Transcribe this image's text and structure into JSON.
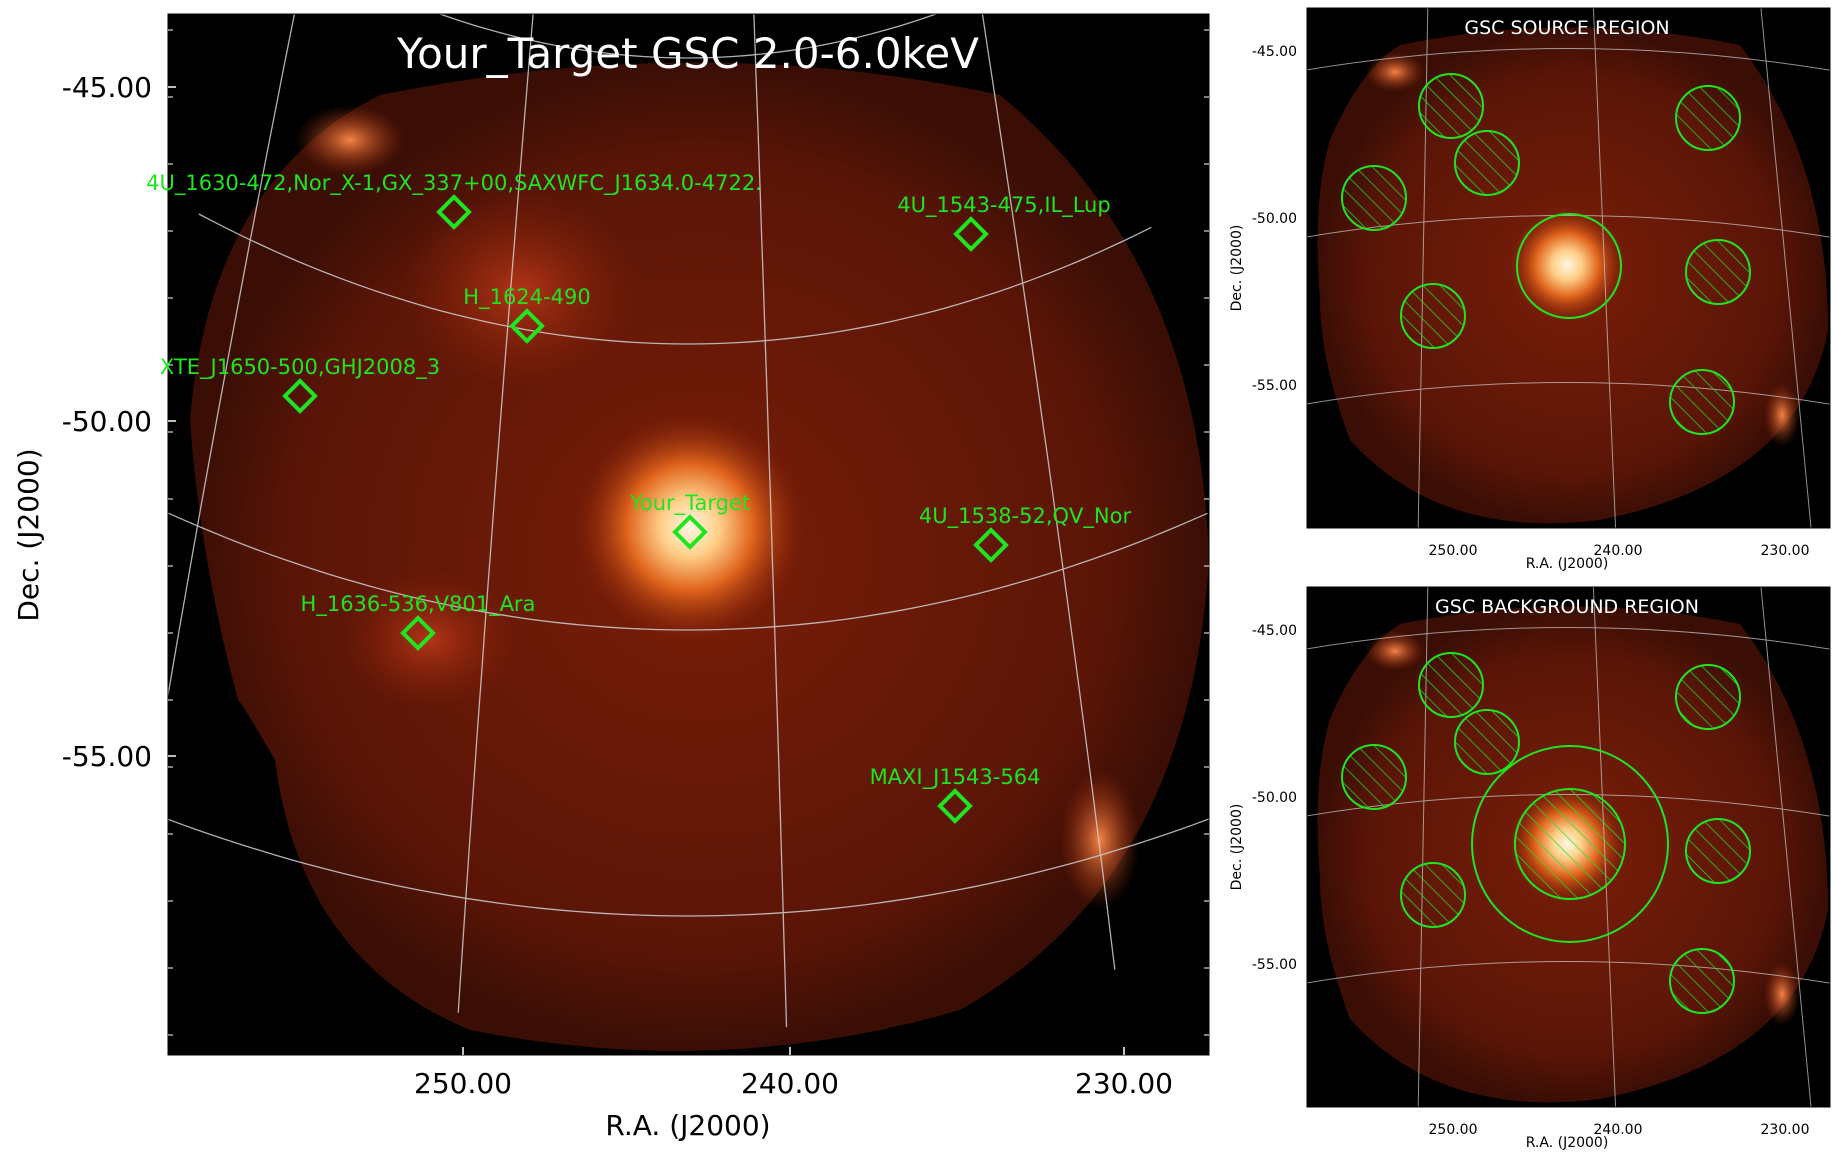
{
  "colors": {
    "background": "#000000",
    "heat_dim": "#3a0f06",
    "heat_mid": "#8a2408",
    "heat_bright": "#ff9a3c",
    "heat_peak": "#fff6e4",
    "grid": "#cfcfcf",
    "marker": "#1ee61e",
    "title_text": "#ffffff",
    "axis_text": "#000000"
  },
  "chart_data": [
    {
      "type": "heatmap",
      "title": "Your_Target GSC 2.0-6.0keV",
      "xlabel": "R.A. (J2000)",
      "ylabel": "Dec. (J2000)",
      "x_ticks": [
        "250.00",
        "240.00",
        "230.00"
      ],
      "y_ticks": [
        "-45.00",
        "-50.00",
        "-55.00"
      ],
      "x_tick_values": [
        250,
        240,
        230
      ],
      "y_tick_values": [
        -45,
        -50,
        -55
      ],
      "xlim": [
        259,
        228
      ],
      "ylim": [
        -60.5,
        -44
      ],
      "x_direction": "decreasing",
      "grid": true,
      "sources": [
        {
          "label": "4U_1630-472,Nor_X-1,GX_337+00,SAXWFC_J1634.0-4722.",
          "ra": 248.5,
          "dec": -47.4
        },
        {
          "label": "4U_1543-475,IL_Lup",
          "ra": 236.8,
          "dec": -47.7
        },
        {
          "label": "H_1624-490",
          "ra": 247.0,
          "dec": -49.1
        },
        {
          "label": "XTE_J1650-500,GHJ2008_3",
          "ra": 252.5,
          "dec": -49.9
        },
        {
          "label": "Your_Target",
          "ra": 243.0,
          "dec": -51.8
        },
        {
          "label": "4U_1538-52,QV_Nor",
          "ra": 234.8,
          "dec": -52.0
        },
        {
          "label": "H_1636-536,V801_Ara",
          "ra": 250.0,
          "dec": -53.5
        },
        {
          "label": "MAXI_J1543-564",
          "ra": 235.8,
          "dec": -56.3
        }
      ]
    },
    {
      "type": "heatmap",
      "title": "GSC SOURCE REGION",
      "xlabel": "R.A. (J2000)",
      "ylabel": "Dec. (J2000)",
      "x_ticks": [
        "250.00",
        "240.00",
        "230.00"
      ],
      "y_ticks": [
        "-45.00",
        "-50.00",
        "-55.00"
      ],
      "grid": true,
      "regions": [
        {
          "kind": "source",
          "shape": "circle",
          "hatched": false
        },
        {
          "kind": "excluded",
          "shape": "circle",
          "hatched": true,
          "count": 7
        }
      ]
    },
    {
      "type": "heatmap",
      "title": "GSC BACKGROUND REGION",
      "xlabel": "R.A. (J2000)",
      "ylabel": "Dec. (J2000)",
      "x_ticks": [
        "250.00",
        "240.00",
        "230.00"
      ],
      "y_ticks": [
        "-45.00",
        "-50.00",
        "-55.00"
      ],
      "grid": true,
      "regions": [
        {
          "kind": "background",
          "shape": "circle",
          "hatched": false
        },
        {
          "kind": "excluded",
          "shape": "circle",
          "hatched": true,
          "count": 8
        }
      ]
    }
  ]
}
